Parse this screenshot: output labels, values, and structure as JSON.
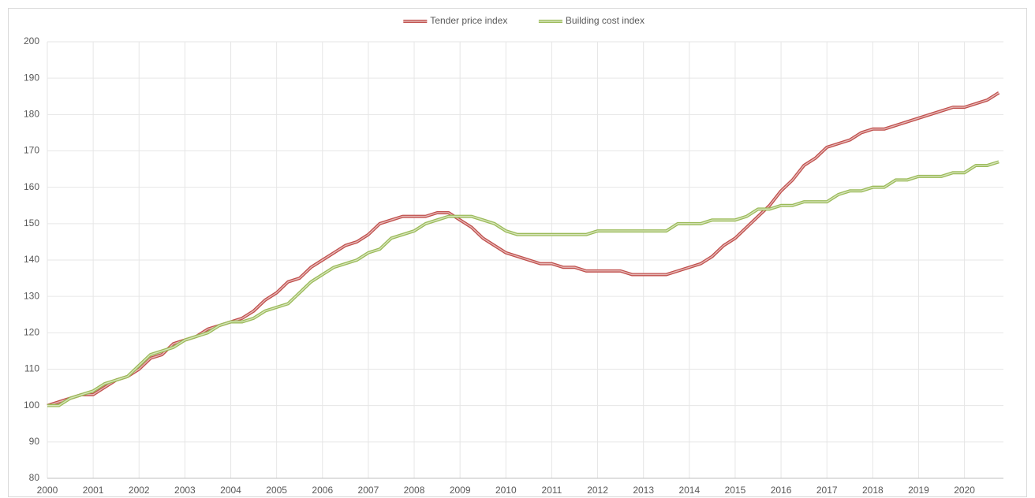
{
  "chart_data": {
    "type": "line",
    "x": [
      2000,
      2000.25,
      2000.5,
      2000.75,
      2001,
      2001.25,
      2001.5,
      2001.75,
      2002,
      2002.25,
      2002.5,
      2002.75,
      2003,
      2003.25,
      2003.5,
      2003.75,
      2004,
      2004.25,
      2004.5,
      2004.75,
      2005,
      2005.25,
      2005.5,
      2005.75,
      2006,
      2006.25,
      2006.5,
      2006.75,
      2007,
      2007.25,
      2007.5,
      2007.75,
      2008,
      2008.25,
      2008.5,
      2008.75,
      2009,
      2009.25,
      2009.5,
      2009.75,
      2010,
      2010.25,
      2010.5,
      2010.75,
      2011,
      2011.25,
      2011.5,
      2011.75,
      2012,
      2012.25,
      2012.5,
      2012.75,
      2013,
      2013.25,
      2013.5,
      2013.75,
      2014,
      2014.25,
      2014.5,
      2014.75,
      2015,
      2015.25,
      2015.5,
      2015.75,
      2016,
      2016.25,
      2016.5,
      2016.75,
      2017,
      2017.25,
      2017.5,
      2017.75,
      2018,
      2018.25,
      2018.5,
      2018.75,
      2019,
      2019.25,
      2019.5,
      2019.75,
      2020,
      2020.25,
      2020.5,
      2020.75
    ],
    "series": [
      {
        "name": "Tender price index",
        "color": "#c0504d",
        "values": [
          100,
          101,
          102,
          103,
          103,
          105,
          107,
          108,
          110,
          113,
          114,
          117,
          118,
          119,
          121,
          122,
          123,
          124,
          126,
          129,
          131,
          134,
          135,
          138,
          140,
          142,
          144,
          145,
          147,
          150,
          151,
          152,
          152,
          152,
          153,
          153,
          151,
          149,
          146,
          144,
          142,
          141,
          140,
          139,
          139,
          138,
          138,
          137,
          137,
          137,
          137,
          136,
          136,
          136,
          136,
          137,
          138,
          139,
          141,
          144,
          146,
          149,
          152,
          155,
          159,
          162,
          166,
          168,
          171,
          172,
          173,
          175,
          176,
          176,
          177,
          178,
          179,
          180,
          181,
          182,
          182,
          183,
          184,
          186
        ]
      },
      {
        "name": "Building cost index",
        "color": "#9bbb59",
        "values": [
          100,
          100,
          102,
          103,
          104,
          106,
          107,
          108,
          111,
          114,
          115,
          116,
          118,
          119,
          120,
          122,
          123,
          123,
          124,
          126,
          127,
          128,
          131,
          134,
          136,
          138,
          139,
          140,
          142,
          143,
          146,
          147,
          148,
          150,
          151,
          152,
          152,
          152,
          151,
          150,
          148,
          147,
          147,
          147,
          147,
          147,
          147,
          147,
          148,
          148,
          148,
          148,
          148,
          148,
          148,
          150,
          150,
          150,
          151,
          151,
          151,
          152,
          154,
          154,
          155,
          155,
          156,
          156,
          156,
          158,
          159,
          159,
          160,
          160,
          162,
          162,
          163,
          163,
          163,
          164,
          164,
          166,
          166,
          167
        ]
      }
    ],
    "xlim": [
      2000,
      2020.85
    ],
    "xticks": [
      2000,
      2001,
      2002,
      2003,
      2004,
      2005,
      2006,
      2007,
      2008,
      2009,
      2010,
      2011,
      2012,
      2013,
      2014,
      2015,
      2016,
      2017,
      2018,
      2019,
      2020
    ],
    "ylim": [
      80,
      200
    ],
    "yticks": [
      80,
      90,
      100,
      110,
      120,
      130,
      140,
      150,
      160,
      170,
      180,
      190,
      200
    ],
    "grid": true,
    "legend": "top"
  }
}
